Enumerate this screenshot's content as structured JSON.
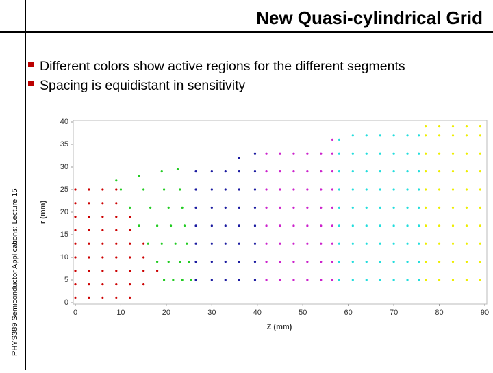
{
  "slide": {
    "title": "New Quasi-cylindrical Grid",
    "side_label": "PHYS389 Semiconductor Applications: Lecture 15",
    "bullets": [
      "Different colors show active regions for the different segments",
      "Spacing is equidistant in sensitivity"
    ]
  },
  "chart_data": {
    "type": "scatter",
    "x_label": "Z (mm)",
    "y_label": "r (mm)",
    "xlim": [
      0,
      90
    ],
    "ylim": [
      0,
      40
    ],
    "xticks": [
      0,
      10,
      20,
      30,
      40,
      50,
      60,
      70,
      80,
      90
    ],
    "yticks": [
      0,
      5,
      10,
      15,
      20,
      25,
      30,
      35,
      40
    ],
    "series": [
      {
        "color": "#cc0000",
        "x": [
          0,
          3,
          6,
          9,
          12,
          0,
          3,
          6,
          9,
          12,
          15,
          0,
          3,
          6,
          9,
          12,
          15,
          18,
          0,
          3,
          6,
          9,
          12,
          15,
          0,
          3,
          6,
          9,
          12,
          15,
          0,
          3,
          6,
          9,
          12,
          0,
          3,
          6,
          9,
          12,
          0,
          3,
          6,
          9,
          0,
          3,
          6,
          9
        ],
        "values": [
          1,
          1,
          1,
          1,
          1,
          4,
          4,
          4,
          4,
          4,
          4,
          7,
          7,
          7,
          7,
          7,
          7,
          7,
          10,
          10,
          10,
          10,
          10,
          10,
          13,
          13,
          13,
          13,
          13,
          13,
          16,
          16,
          16,
          16,
          16,
          19,
          19,
          19,
          19,
          19,
          22,
          22,
          22,
          22,
          25,
          25,
          25,
          25
        ]
      },
      {
        "color": "#22cc22",
        "x": [
          19.5,
          18,
          16,
          14,
          12,
          10,
          9,
          21.5,
          20.5,
          19,
          18,
          16.5,
          15,
          14,
          23.5,
          23,
          22,
          21,
          20.5,
          19.5,
          19,
          25.5,
          25,
          24.5,
          24,
          23.5,
          23,
          22.5
        ],
        "values": [
          5,
          9,
          13,
          17,
          21,
          25,
          27,
          5,
          9,
          13,
          17,
          21,
          25,
          28,
          5,
          9,
          13,
          17,
          21,
          25,
          29,
          5,
          9,
          13,
          17,
          21,
          25,
          29.5
        ]
      },
      {
        "color": "#1a1aa0",
        "x": [
          26.5,
          26.5,
          26.5,
          26.5,
          26.5,
          26.5,
          26.5,
          30,
          30,
          30,
          30,
          30,
          30,
          30,
          33,
          33,
          33,
          33,
          33,
          33,
          33,
          36,
          36,
          36,
          36,
          36,
          36,
          36,
          36,
          39.5,
          39.5,
          39.5,
          39.5,
          39.5,
          39.5,
          39.5,
          39.5
        ],
        "values": [
          5,
          9,
          13,
          17,
          21,
          25,
          29,
          5,
          9,
          13,
          17,
          21,
          25,
          29,
          5,
          9,
          13,
          17,
          21,
          25,
          29,
          5,
          9,
          13,
          17,
          21,
          25,
          29,
          32,
          5,
          9,
          13,
          17,
          21,
          25,
          29,
          33
        ]
      },
      {
        "color": "#cc22cc",
        "x": [
          42,
          42,
          42,
          42,
          42,
          42,
          42,
          42,
          45,
          45,
          45,
          45,
          45,
          45,
          45,
          45,
          48,
          48,
          48,
          48,
          48,
          48,
          48,
          48,
          51,
          51,
          51,
          51,
          51,
          51,
          51,
          51,
          54,
          54,
          54,
          54,
          54,
          54,
          54,
          54,
          56.5,
          56.5,
          56.5,
          56.5,
          56.5,
          56.5,
          56.5,
          56.5,
          56.5
        ],
        "values": [
          5,
          9,
          13,
          17,
          21,
          25,
          29,
          33,
          5,
          9,
          13,
          17,
          21,
          25,
          29,
          33,
          5,
          9,
          13,
          17,
          21,
          25,
          29,
          33,
          5,
          9,
          13,
          17,
          21,
          25,
          29,
          33,
          5,
          9,
          13,
          17,
          21,
          25,
          29,
          33,
          5,
          9,
          13,
          17,
          21,
          25,
          29,
          33,
          36
        ]
      },
      {
        "color": "#22dddd",
        "x": [
          58,
          58,
          58,
          58,
          58,
          58,
          58,
          58,
          58,
          61,
          61,
          61,
          61,
          61,
          61,
          61,
          61,
          61,
          64,
          64,
          64,
          64,
          64,
          64,
          64,
          64,
          64,
          67,
          67,
          67,
          67,
          67,
          67,
          67,
          67,
          67,
          70,
          70,
          70,
          70,
          70,
          70,
          70,
          70,
          70,
          73,
          73,
          73,
          73,
          73,
          73,
          73,
          73,
          73,
          75.5,
          75.5,
          75.5,
          75.5,
          75.5,
          75.5,
          75.5,
          75.5,
          75.5
        ],
        "values": [
          5,
          9,
          13,
          17,
          21,
          25,
          29,
          33,
          36,
          5,
          9,
          13,
          17,
          21,
          25,
          29,
          33,
          37,
          5,
          9,
          13,
          17,
          21,
          25,
          29,
          33,
          37,
          5,
          9,
          13,
          17,
          21,
          25,
          29,
          33,
          37,
          5,
          9,
          13,
          17,
          21,
          25,
          29,
          33,
          37,
          5,
          9,
          13,
          17,
          21,
          25,
          29,
          33,
          37,
          5,
          9,
          13,
          17,
          21,
          25,
          29,
          33,
          37
        ]
      },
      {
        "color": "#eeee00",
        "x": [
          77,
          77,
          77,
          77,
          77,
          77,
          77,
          77,
          77,
          77,
          80,
          80,
          80,
          80,
          80,
          80,
          80,
          80,
          80,
          80,
          83,
          83,
          83,
          83,
          83,
          83,
          83,
          83,
          83,
          83,
          86,
          86,
          86,
          86,
          86,
          86,
          86,
          86,
          86,
          86,
          89,
          89,
          89,
          89,
          89,
          89,
          89,
          89,
          89,
          89
        ],
        "values": [
          5,
          9,
          13,
          17,
          21,
          25,
          29,
          33,
          37,
          39,
          5,
          9,
          13,
          17,
          21,
          25,
          29,
          33,
          37,
          39,
          5,
          9,
          13,
          17,
          21,
          25,
          29,
          33,
          37,
          39,
          5,
          9,
          13,
          17,
          21,
          25,
          29,
          33,
          37,
          39,
          5,
          9,
          13,
          17,
          21,
          25,
          29,
          33,
          37,
          39
        ]
      }
    ]
  }
}
